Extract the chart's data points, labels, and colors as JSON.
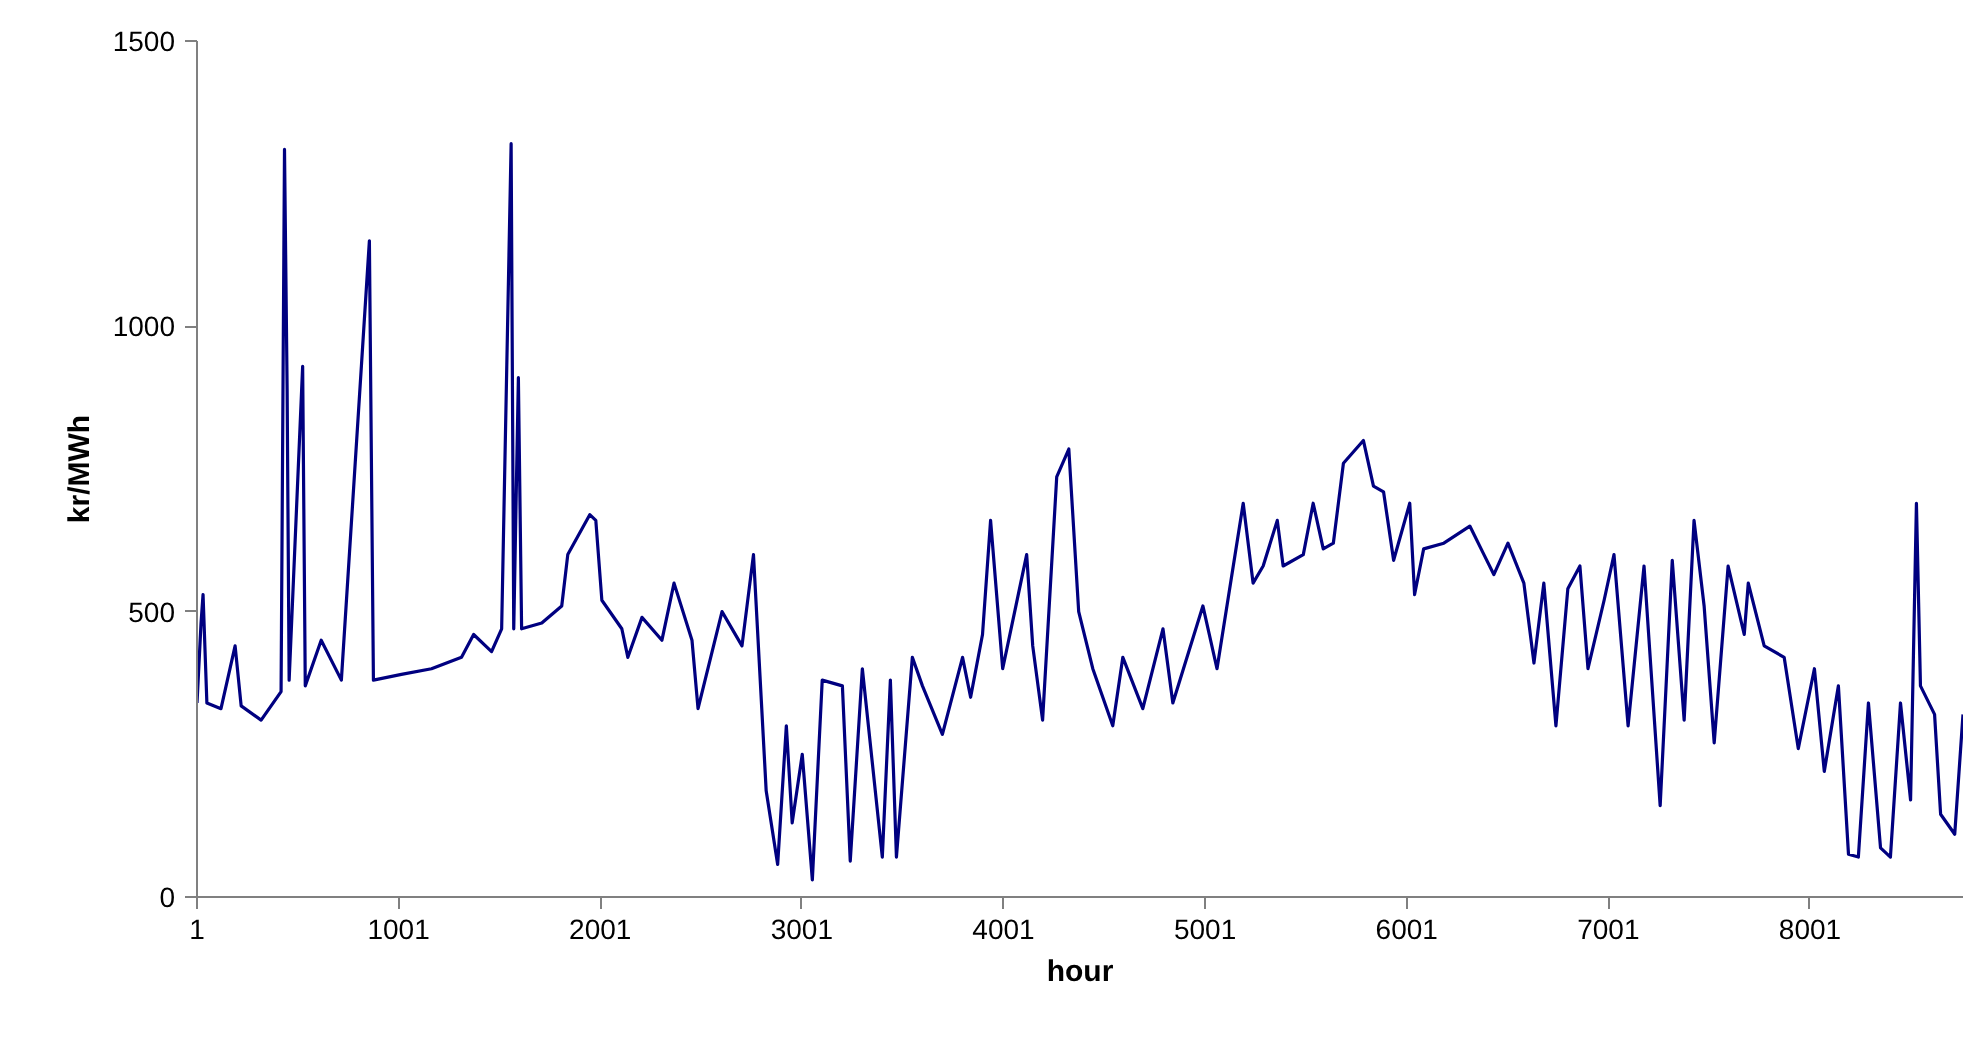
{
  "chart_data": {
    "type": "line",
    "xlabel": "hour",
    "ylabel": "kr/MWh",
    "xlim": [
      1,
      8760
    ],
    "xticks": [
      1,
      1001,
      2001,
      3001,
      4001,
      5001,
      6001,
      7001,
      8001
    ],
    "ylim": [
      0,
      1500
    ],
    "yticks": [
      0,
      500,
      1000,
      1500
    ],
    "grid": false,
    "marker": "none",
    "line_style": "solid",
    "series": [
      {
        "color": "#000080",
        "x": [
          1,
          21,
          31,
          50,
          120,
          190,
          220,
          319,
          418,
          435,
          448,
          458,
          525,
          538,
          617,
          717,
          856,
          876,
          1015,
          1164,
          1313,
          1373,
          1462,
          1512,
          1559,
          1572,
          1595,
          1611,
          1711,
          1810,
          1840,
          1949,
          1979,
          2009,
          2108,
          2138,
          2208,
          2307,
          2367,
          2456,
          2486,
          2605,
          2704,
          2761,
          2824,
          2881,
          2924,
          2953,
          3003,
          3053,
          3102,
          3202,
          3241,
          3301,
          3400,
          3440,
          3470,
          3549,
          3599,
          3698,
          3798,
          3838,
          3897,
          3937,
          3997,
          4116,
          4146,
          4195,
          4265,
          4325,
          4374,
          4444,
          4543,
          4593,
          4692,
          4792,
          4841,
          4990,
          5060,
          5190,
          5239,
          5289,
          5359,
          5388,
          5488,
          5537,
          5587,
          5637,
          5687,
          5786,
          5836,
          5886,
          5936,
          6016,
          6040,
          6085,
          6185,
          6314,
          6384,
          6433,
          6503,
          6582,
          6632,
          6681,
          6741,
          6800,
          6860,
          6900,
          6980,
          7029,
          7099,
          7178,
          7258,
          7318,
          7377,
          7426,
          7476,
          7526,
          7595,
          7675,
          7695,
          7774,
          7873,
          7943,
          8023,
          8072,
          8142,
          8192,
          8241,
          8291,
          8351,
          8400,
          8450,
          8500,
          8529,
          8549,
          8619,
          8649,
          8719,
          8760
        ],
        "values": [
          340,
          480,
          530,
          340,
          330,
          440,
          335,
          310,
          360,
          1310,
          890,
          380,
          930,
          370,
          450,
          380,
          1150,
          380,
          390,
          400,
          420,
          460,
          430,
          470,
          1320,
          470,
          910,
          470,
          480,
          510,
          600,
          670,
          660,
          520,
          470,
          420,
          490,
          450,
          550,
          450,
          330,
          500,
          440,
          600,
          186,
          57,
          300,
          130,
          250,
          30,
          380,
          370,
          63,
          400,
          70,
          380,
          70,
          420,
          370,
          285,
          420,
          350,
          460,
          660,
          400,
          600,
          440,
          310,
          736,
          785,
          500,
          400,
          300,
          420,
          330,
          470,
          340,
          510,
          400,
          690,
          550,
          580,
          660,
          580,
          600,
          690,
          610,
          620,
          760,
          800,
          720,
          710,
          590,
          690,
          530,
          610,
          620,
          650,
          600,
          565,
          620,
          550,
          410,
          550,
          300,
          540,
          580,
          400,
          520,
          600,
          300,
          580,
          160,
          590,
          310,
          660,
          510,
          270,
          580,
          460,
          550,
          440,
          420,
          260,
          400,
          220,
          370,
          75,
          70,
          340,
          86,
          70,
          340,
          170,
          690,
          370,
          320,
          145,
          110,
          320
        ]
      }
    ]
  }
}
